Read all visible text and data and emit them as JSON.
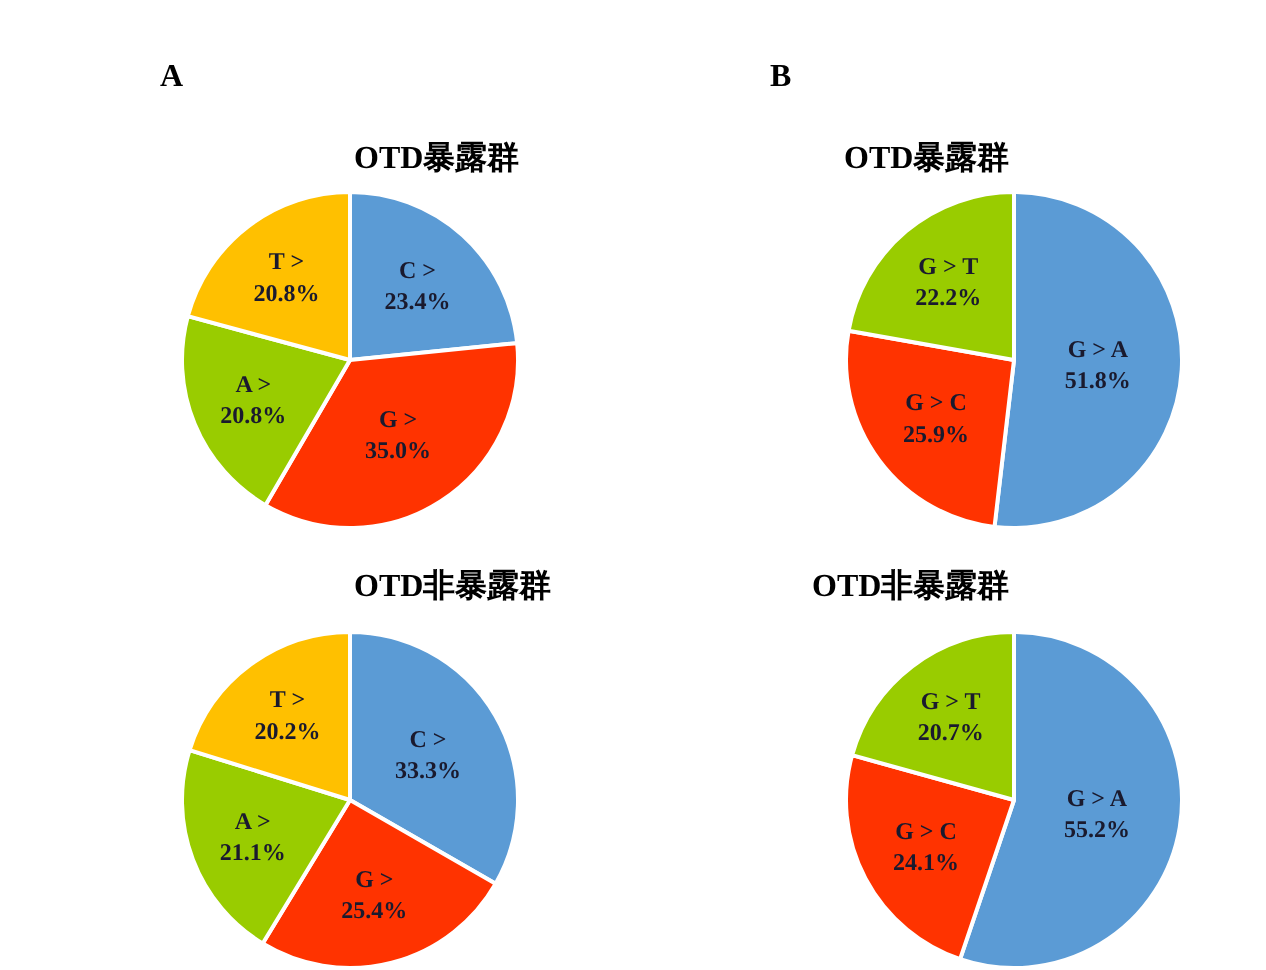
{
  "chart_data": [
    {
      "type": "pie",
      "title": "OTD暴露群",
      "annotations": [
        "A"
      ],
      "categories": [
        "C >",
        "G >",
        "A >",
        "T >"
      ],
      "values": [
        23.4,
        35.0,
        20.8,
        20.8
      ],
      "value_labels": [
        "23.4%",
        "35.0%",
        "20.8%",
        "20.8%"
      ],
      "colors": [
        "#5b9bd5",
        "#ff3300",
        "#99cc00",
        "#ffc000"
      ]
    },
    {
      "type": "pie",
      "title": "OTD暴露群",
      "annotations": [
        "B"
      ],
      "categories": [
        "G > A",
        "G > C",
        "G > T"
      ],
      "values": [
        51.8,
        25.9,
        22.2
      ],
      "value_labels": [
        "51.8%",
        "25.9%",
        "22.2%"
      ],
      "colors": [
        "#5b9bd5",
        "#ff3300",
        "#99cc00"
      ]
    },
    {
      "type": "pie",
      "title": "OTD非暴露群",
      "categories": [
        "C >",
        "G >",
        "A >",
        "T >"
      ],
      "values": [
        33.3,
        25.4,
        21.1,
        20.2
      ],
      "value_labels": [
        "33.3%",
        "25.4%",
        "21.1%",
        "20.2%"
      ],
      "colors": [
        "#5b9bd5",
        "#ff3300",
        "#99cc00",
        "#ffc000"
      ]
    },
    {
      "type": "pie",
      "title": "OTD非暴露群",
      "categories": [
        "G > A",
        "G > C",
        "G > T"
      ],
      "values": [
        55.2,
        24.1,
        20.7
      ],
      "value_labels": [
        "55.2%",
        "24.1%",
        "20.7%"
      ],
      "colors": [
        "#5b9bd5",
        "#ff3300",
        "#99cc00"
      ]
    }
  ]
}
